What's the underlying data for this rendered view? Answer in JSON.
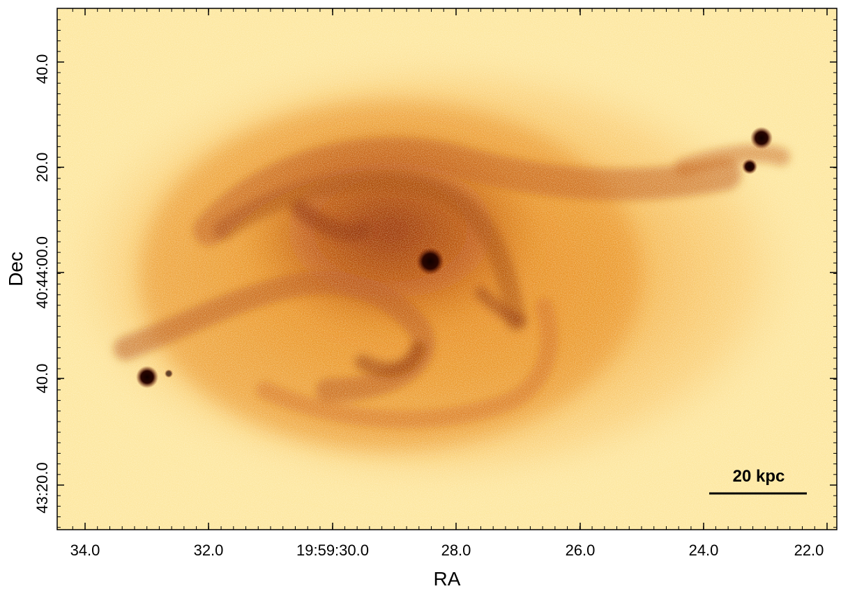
{
  "figure": {
    "x_axis_label": "RA",
    "y_axis_label": "Dec",
    "x_tick_labels": [
      "34.0",
      "32.0",
      "19:59:30.0",
      "28.0",
      "26.0",
      "24.0",
      "22.0"
    ],
    "y_tick_labels": [
      "40.0",
      "20.0",
      "40:44:00.0",
      "40.0",
      "43:20.0"
    ],
    "scale_bar_label": "20 kpc",
    "colormap": {
      "background": "#fff6c8",
      "low": "#ffe08a",
      "mid": "#f5a623",
      "high": "#c9580c",
      "peak": "#7a1a00",
      "saturated": "#1a0000"
    }
  }
}
